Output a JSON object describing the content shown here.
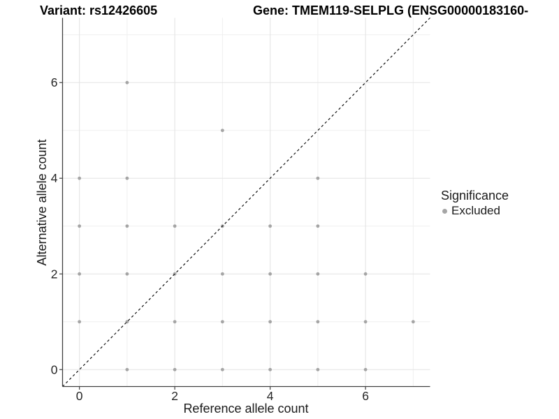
{
  "titles": {
    "variant": "Variant: rs12426605",
    "gene": "Gene: TMEM119-SELPLG (ENSG00000183160-"
  },
  "legend": {
    "title": "Significance",
    "items": [
      {
        "label": "Excluded",
        "color": "#a5a5a5"
      }
    ]
  },
  "colors": {
    "background": "#ffffff",
    "grid_major": "#e4e4e4",
    "grid_minor": "#efefef",
    "axis": "#404040",
    "tick_text": "#262626",
    "identity_line": "#111111",
    "point": "#a5a5a5"
  },
  "chart_data": {
    "type": "scatter",
    "title_left": "Variant: rs12426605",
    "title_right": "Gene: TMEM119-SELPLG (ENSG00000183160-",
    "xlabel": "Reference allele count",
    "ylabel": "Alternative allele count",
    "xlim": [
      -0.354,
      7.354
    ],
    "ylim": [
      -0.354,
      7.354
    ],
    "x_ticks": [
      0,
      2,
      4,
      6
    ],
    "y_ticks": [
      0,
      2,
      4,
      6
    ],
    "x_minor": [
      1,
      3,
      5,
      7
    ],
    "y_minor": [
      1,
      3,
      5,
      7
    ],
    "grid": "major+minor",
    "legend_position": "right",
    "identity_line": {
      "style": "dashed",
      "from": [
        -0.354,
        -0.354
      ],
      "to": [
        7.354,
        7.354
      ]
    },
    "series": [
      {
        "name": "Excluded",
        "color": "#a5a5a5",
        "point_radius": 2.4,
        "points": [
          [
            1,
            0
          ],
          [
            2,
            0
          ],
          [
            3,
            0
          ],
          [
            4,
            0
          ],
          [
            5,
            0
          ],
          [
            6,
            0
          ],
          [
            0,
            1
          ],
          [
            1,
            1
          ],
          [
            2,
            1
          ],
          [
            3,
            1
          ],
          [
            4,
            1
          ],
          [
            5,
            1
          ],
          [
            6,
            1
          ],
          [
            7,
            1
          ],
          [
            0,
            2
          ],
          [
            1,
            2
          ],
          [
            2,
            2
          ],
          [
            3,
            2
          ],
          [
            4,
            2
          ],
          [
            5,
            2
          ],
          [
            6,
            2
          ],
          [
            0,
            3
          ],
          [
            1,
            3
          ],
          [
            2,
            3
          ],
          [
            3,
            3
          ],
          [
            4,
            3
          ],
          [
            5,
            3
          ],
          [
            0,
            4
          ],
          [
            1,
            4
          ],
          [
            5,
            4
          ],
          [
            3,
            5
          ],
          [
            1,
            6
          ]
        ]
      }
    ]
  }
}
